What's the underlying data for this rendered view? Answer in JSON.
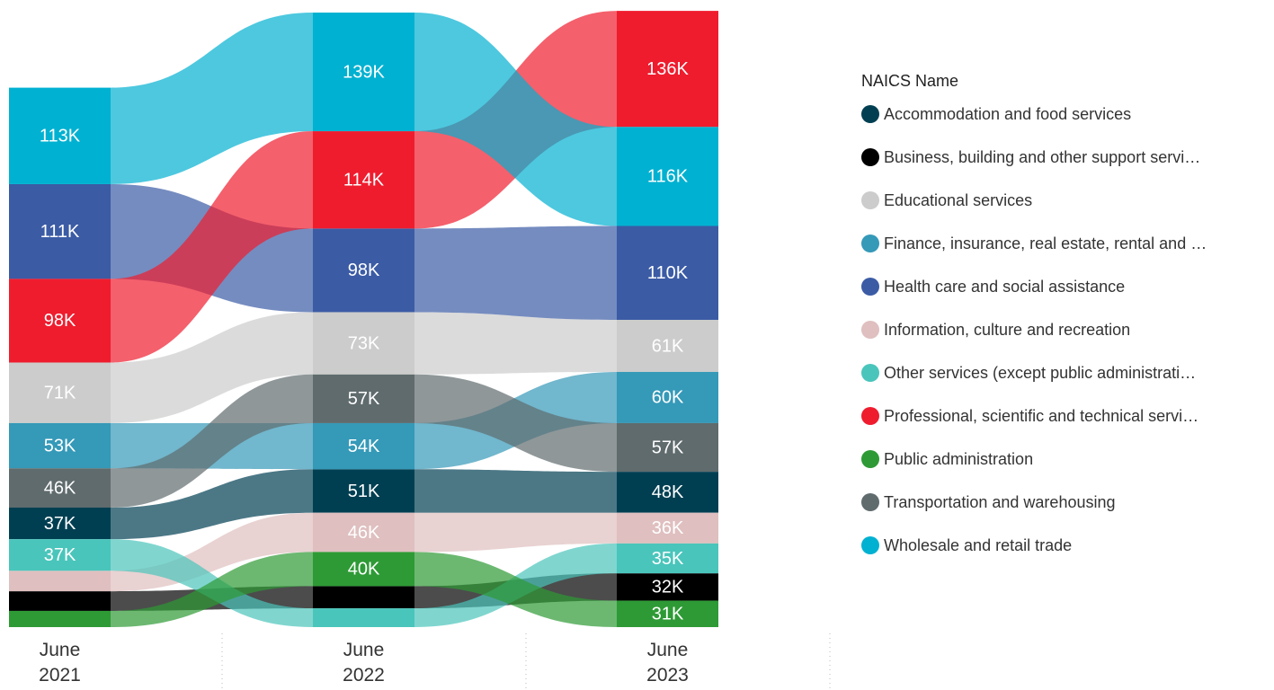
{
  "chart_data": {
    "type": "ribbon",
    "categories": [
      "June 2021",
      "June 2022",
      "June 2023"
    ],
    "legend_title": "NAICS Name",
    "series": [
      {
        "name": "Accommodation and food services",
        "color": "#003f52",
        "values": [
          37,
          51,
          48
        ],
        "value_labels": [
          "37K",
          "51K",
          "48K"
        ]
      },
      {
        "name": "Business, building and other support servi…",
        "color": "#000000",
        "values": [
          23,
          26,
          32
        ],
        "value_labels": [
          null,
          null,
          "32K"
        ]
      },
      {
        "name": "Educational services",
        "color": "#cccccc",
        "values": [
          71,
          73,
          61
        ],
        "value_labels": [
          "71K",
          "73K",
          "61K"
        ]
      },
      {
        "name": "Finance, insurance, real estate, rental and …",
        "color": "#3599b8",
        "values": [
          53,
          54,
          60
        ],
        "value_labels": [
          "53K",
          "54K",
          "60K"
        ]
      },
      {
        "name": "Health care and social assistance",
        "color": "#3b5ba5",
        "values": [
          111,
          98,
          110
        ],
        "value_labels": [
          "111K",
          "98K",
          "110K"
        ]
      },
      {
        "name": "Information, culture and recreation",
        "color": "#dfbfbf",
        "values": [
          24,
          46,
          36
        ],
        "value_labels": [
          null,
          "46K",
          "36K"
        ]
      },
      {
        "name": "Other services (except public administrati…",
        "color": "#4ac5bb",
        "values": [
          37,
          22,
          35
        ],
        "value_labels": [
          "37K",
          null,
          "35K"
        ]
      },
      {
        "name": "Professional, scientific and technical servi…",
        "color": "#ef1c2e",
        "values": [
          98,
          114,
          136
        ],
        "value_labels": [
          "98K",
          "114K",
          "136K"
        ]
      },
      {
        "name": "Public administration",
        "color": "#2e9a35",
        "values": [
          19,
          40,
          31
        ],
        "value_labels": [
          null,
          "40K",
          "31K"
        ]
      },
      {
        "name": "Transportation and warehousing",
        "color": "#5f6b6d",
        "values": [
          46,
          57,
          57
        ],
        "value_labels": [
          "46K",
          "57K",
          "57K"
        ]
      },
      {
        "name": "Wholesale and retail trade",
        "color": "#01b1d1",
        "values": [
          113,
          139,
          116
        ],
        "value_labels": [
          "113K",
          "139K",
          "116K"
        ]
      }
    ]
  }
}
